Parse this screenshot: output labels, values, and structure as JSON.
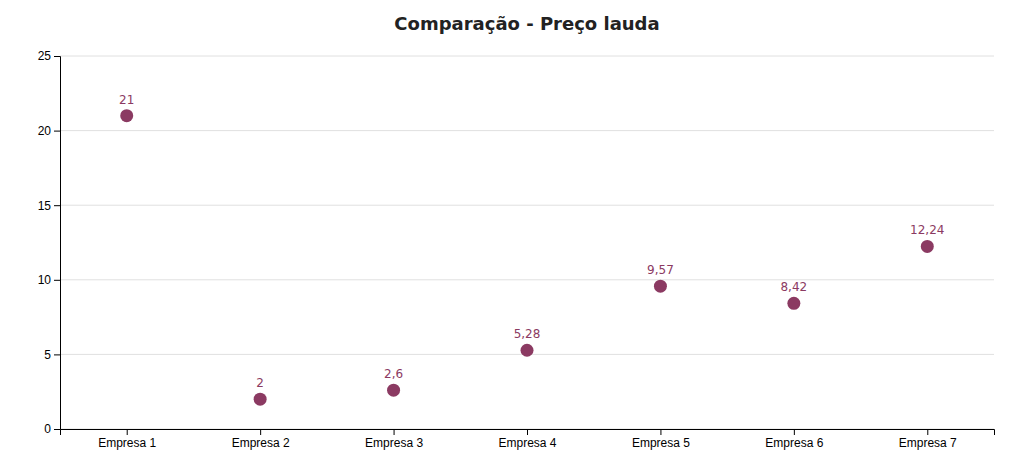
{
  "chart_data": {
    "type": "scatter",
    "title": "Comparação - Preço lauda",
    "categories": [
      "Empresa 1",
      "Empresa 2",
      "Empresa 3",
      "Empresa 4",
      "Empresa 5",
      "Empresa 6",
      "Empresa 7"
    ],
    "values": [
      21,
      2,
      2.6,
      5.28,
      9.57,
      8.42,
      12.24
    ],
    "value_labels": [
      "21",
      "2",
      "2,6",
      "5,28",
      "9,57",
      "8,42",
      "12,24"
    ],
    "color": "#8B3A62",
    "ylim": [
      0,
      25
    ],
    "yticks": [
      0,
      5,
      10,
      15,
      20,
      25
    ],
    "grid": true,
    "data_labels": true
  }
}
